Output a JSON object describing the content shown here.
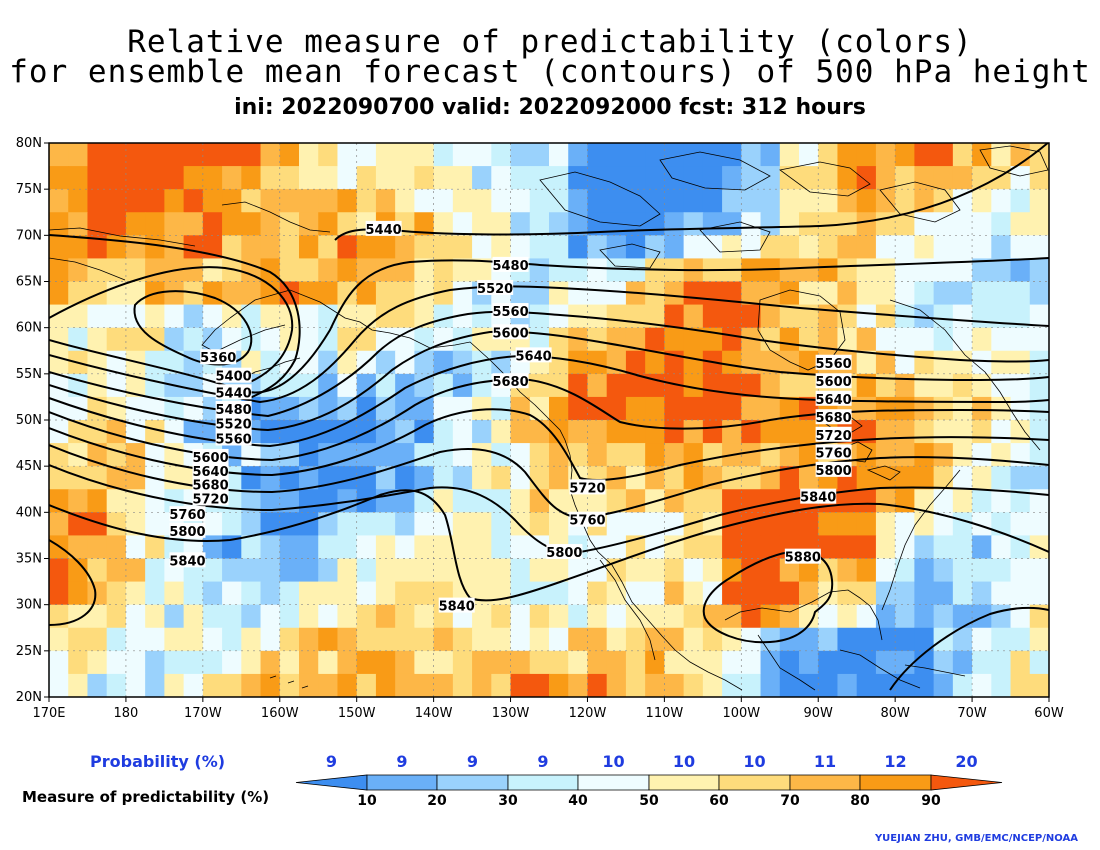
{
  "title": {
    "line1": "Relative measure of predictability (colors)",
    "line2": "for ensemble mean forecast (contours) of 500 hPa height",
    "line3": "ini: 2022090700 valid: 2022092000 fcst: 312 hours"
  },
  "map": {
    "lon_range": [
      "170E",
      "60W"
    ],
    "lat_range": [
      "20N",
      "80N"
    ],
    "x_ticks": [
      "170E",
      "180",
      "170W",
      "160W",
      "150W",
      "140W",
      "130W",
      "120W",
      "110W",
      "100W",
      "90W",
      "80W",
      "70W",
      "60W"
    ],
    "y_ticks": [
      "20N",
      "25N",
      "30N",
      "35N",
      "40N",
      "45N",
      "50N",
      "55N",
      "60N",
      "65N",
      "70N",
      "75N",
      "80N"
    ],
    "gridlines": true,
    "contour_labels": [
      {
        "value": "5360",
        "lon": -168,
        "lat": 56.8
      },
      {
        "value": "5400",
        "lon": -166,
        "lat": 54.8
      },
      {
        "value": "5440",
        "lon": -146.5,
        "lat": 70.7
      },
      {
        "value": "5440",
        "lon": -166,
        "lat": 53.0
      },
      {
        "value": "5480",
        "lon": -130,
        "lat": 66.8
      },
      {
        "value": "5480",
        "lon": -166,
        "lat": 51.2
      },
      {
        "value": "5520",
        "lon": -132,
        "lat": 64.3
      },
      {
        "value": "5520",
        "lon": -166,
        "lat": 49.6
      },
      {
        "value": "5560",
        "lon": -130,
        "lat": 61.8
      },
      {
        "value": "5560",
        "lon": -166,
        "lat": 48.0
      },
      {
        "value": "5560",
        "lon": -88,
        "lat": 56.2
      },
      {
        "value": "5600",
        "lon": -130,
        "lat": 59.5
      },
      {
        "value": "5600",
        "lon": -169,
        "lat": 46.0
      },
      {
        "value": "5600",
        "lon": -88,
        "lat": 54.2
      },
      {
        "value": "5640",
        "lon": -127,
        "lat": 57.0
      },
      {
        "value": "5640",
        "lon": -169,
        "lat": 44.5
      },
      {
        "value": "5640",
        "lon": -88,
        "lat": 52.3
      },
      {
        "value": "5680",
        "lon": -130,
        "lat": 54.2
      },
      {
        "value": "5680",
        "lon": -169,
        "lat": 43.0
      },
      {
        "value": "5680",
        "lon": -88,
        "lat": 50.3
      },
      {
        "value": "5720",
        "lon": -120,
        "lat": 42.7
      },
      {
        "value": "5720",
        "lon": -169,
        "lat": 41.5
      },
      {
        "value": "5720",
        "lon": -88,
        "lat": 48.4
      },
      {
        "value": "5760",
        "lon": -120,
        "lat": 39.2
      },
      {
        "value": "5760",
        "lon": -172,
        "lat": 39.8
      },
      {
        "value": "5760",
        "lon": -88,
        "lat": 46.5
      },
      {
        "value": "5800",
        "lon": -123,
        "lat": 35.7
      },
      {
        "value": "5800",
        "lon": -172,
        "lat": 38.0
      },
      {
        "value": "5800",
        "lon": -88,
        "lat": 44.6
      },
      {
        "value": "5840",
        "lon": -137,
        "lat": 29.9
      },
      {
        "value": "5840",
        "lon": -172,
        "lat": 34.8
      },
      {
        "value": "5840",
        "lon": -90,
        "lat": 41.7
      },
      {
        "value": "5880",
        "lon": -92,
        "lat": 35.2
      }
    ]
  },
  "legend": {
    "probability_title": "Probability (%)",
    "probability_values": [
      "9",
      "9",
      "9",
      "9",
      "10",
      "10",
      "10",
      "11",
      "12",
      "20"
    ],
    "measure_title": "Measure of predictability (%)",
    "measure_ticks": [
      "10",
      "20",
      "30",
      "40",
      "50",
      "60",
      "70",
      "80",
      "90"
    ],
    "colors": [
      "#3d8ef0",
      "#6ab0f8",
      "#9ad2fc",
      "#c8f2fc",
      "#eefcff",
      "#fff2b0",
      "#fedc7c",
      "#fdb747",
      "#f99b16",
      "#f4580e"
    ]
  },
  "credit": "YUEJIAN ZHU, GMB/EMC/NCEP/NOAA"
}
